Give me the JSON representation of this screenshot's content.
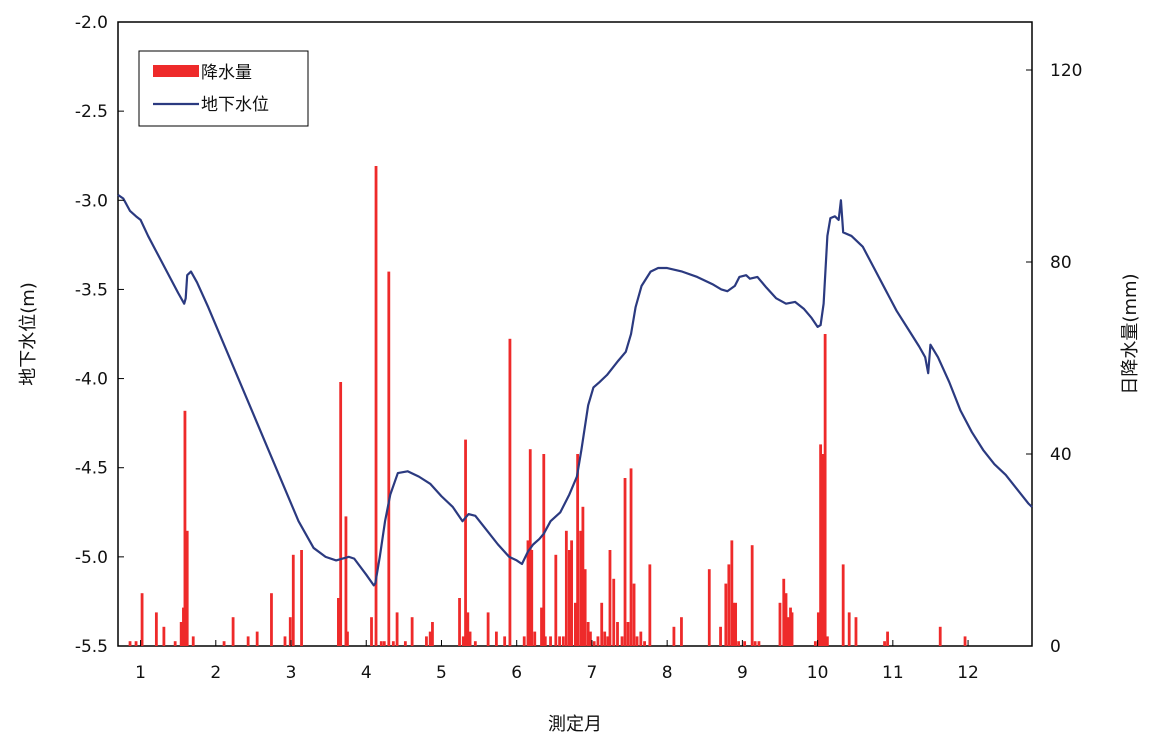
{
  "chart_data": {
    "type": "bar+line",
    "title": "",
    "xlabel": "測定月",
    "ylabel_left": "地下水位(m)",
    "ylabel_right": "日降水量(mm)",
    "x_tick_labels": [
      "1",
      "2",
      "3",
      "4",
      "5",
      "6",
      "7",
      "8",
      "9",
      "10",
      "11",
      "12"
    ],
    "xlim": [
      0.7,
      12.85
    ],
    "ylim_left": [
      -5.5,
      -2.0
    ],
    "ylim_right": [
      0,
      130
    ],
    "y_left_ticks": [
      -2.0,
      -2.5,
      -3.0,
      -3.5,
      -4.0,
      -4.5,
      -5.0,
      -5.5
    ],
    "y_left_tick_labels": [
      "-2.0",
      "-2.5",
      "-3.0",
      "-3.5",
      "-4.0",
      "-4.5",
      "-5.0",
      "-5.5"
    ],
    "y_right_ticks": [
      0,
      40,
      80,
      120
    ],
    "y_right_tick_labels": [
      "0",
      "40",
      "80",
      "120"
    ],
    "grid": false,
    "legend_position": "top-left",
    "colors": {
      "rain": "#ee2a2a",
      "water": "#2b3a80"
    },
    "series": [
      {
        "name": "降水量",
        "kind": "bar",
        "axis": "right",
        "points": [
          [
            0.86,
            1
          ],
          [
            0.94,
            1
          ],
          [
            1.02,
            11
          ],
          [
            1.21,
            7
          ],
          [
            1.31,
            4
          ],
          [
            1.46,
            1
          ],
          [
            1.54,
            5
          ],
          [
            1.57,
            8
          ],
          [
            1.59,
            49
          ],
          [
            1.62,
            24
          ],
          [
            1.7,
            2
          ],
          [
            2.11,
            1
          ],
          [
            2.23,
            6
          ],
          [
            2.43,
            2
          ],
          [
            2.55,
            3
          ],
          [
            2.74,
            11
          ],
          [
            2.92,
            2
          ],
          [
            2.99,
            6
          ],
          [
            3.03,
            19
          ],
          [
            3.14,
            20
          ],
          [
            3.63,
            10
          ],
          [
            3.66,
            55
          ],
          [
            3.73,
            27
          ],
          [
            3.75,
            3
          ],
          [
            4.07,
            6
          ],
          [
            4.13,
            100
          ],
          [
            4.2,
            1
          ],
          [
            4.24,
            1
          ],
          [
            4.3,
            78
          ],
          [
            4.36,
            1
          ],
          [
            4.41,
            7
          ],
          [
            4.52,
            1
          ],
          [
            4.61,
            6
          ],
          [
            4.8,
            2
          ],
          [
            4.85,
            3
          ],
          [
            4.88,
            5
          ],
          [
            5.24,
            10
          ],
          [
            5.29,
            2
          ],
          [
            5.32,
            43
          ],
          [
            5.35,
            7
          ],
          [
            5.38,
            3
          ],
          [
            5.45,
            1
          ],
          [
            5.62,
            7
          ],
          [
            5.73,
            3
          ],
          [
            5.84,
            2
          ],
          [
            5.91,
            64
          ],
          [
            6.1,
            2
          ],
          [
            6.15,
            22
          ],
          [
            6.18,
            41
          ],
          [
            6.2,
            20
          ],
          [
            6.24,
            3
          ],
          [
            6.33,
            8
          ],
          [
            6.36,
            40
          ],
          [
            6.38,
            2
          ],
          [
            6.45,
            2
          ],
          [
            6.52,
            19
          ],
          [
            6.57,
            2
          ],
          [
            6.62,
            2
          ],
          [
            6.66,
            24
          ],
          [
            6.7,
            20
          ],
          [
            6.73,
            22
          ],
          [
            6.78,
            9
          ],
          [
            6.81,
            40
          ],
          [
            6.85,
            24
          ],
          [
            6.88,
            29
          ],
          [
            6.91,
            16
          ],
          [
            6.95,
            5
          ],
          [
            6.98,
            3
          ],
          [
            7.03,
            1
          ],
          [
            7.08,
            2
          ],
          [
            7.13,
            9
          ],
          [
            7.17,
            3
          ],
          [
            7.21,
            2
          ],
          [
            7.24,
            20
          ],
          [
            7.29,
            14
          ],
          [
            7.34,
            5
          ],
          [
            7.4,
            2
          ],
          [
            7.44,
            35
          ],
          [
            7.48,
            5
          ],
          [
            7.52,
            37
          ],
          [
            7.56,
            13
          ],
          [
            7.6,
            2
          ],
          [
            7.65,
            3
          ],
          [
            7.7,
            1
          ],
          [
            7.77,
            17
          ],
          [
            8.09,
            4
          ],
          [
            8.19,
            6
          ],
          [
            8.56,
            16
          ],
          [
            8.71,
            4
          ],
          [
            8.78,
            13
          ],
          [
            8.82,
            17
          ],
          [
            8.86,
            22
          ],
          [
            8.88,
            9
          ],
          [
            8.91,
            9
          ],
          [
            8.95,
            1
          ],
          [
            9.03,
            1
          ],
          [
            9.13,
            21
          ],
          [
            9.17,
            1
          ],
          [
            9.22,
            1
          ],
          [
            9.5,
            9
          ],
          [
            9.55,
            14
          ],
          [
            9.58,
            11
          ],
          [
            9.61,
            6
          ],
          [
            9.64,
            8
          ],
          [
            9.66,
            7
          ],
          [
            9.97,
            1
          ],
          [
            10.01,
            7
          ],
          [
            10.04,
            42
          ],
          [
            10.07,
            40
          ],
          [
            10.1,
            65
          ],
          [
            10.13,
            2
          ],
          [
            10.34,
            17
          ],
          [
            10.42,
            7
          ],
          [
            10.51,
            6
          ],
          [
            10.89,
            1
          ],
          [
            10.93,
            3
          ],
          [
            11.63,
            4
          ],
          [
            11.96,
            2
          ]
        ]
      },
      {
        "name": "地下水位",
        "kind": "line",
        "axis": "left",
        "points": [
          [
            0.7,
            -2.97
          ],
          [
            0.77,
            -2.99
          ],
          [
            0.86,
            -3.06
          ],
          [
            0.94,
            -3.09
          ],
          [
            1.0,
            -3.11
          ],
          [
            1.1,
            -3.2
          ],
          [
            1.2,
            -3.28
          ],
          [
            1.35,
            -3.4
          ],
          [
            1.5,
            -3.52
          ],
          [
            1.58,
            -3.58
          ],
          [
            1.6,
            -3.55
          ],
          [
            1.62,
            -3.42
          ],
          [
            1.67,
            -3.4
          ],
          [
            1.75,
            -3.46
          ],
          [
            1.9,
            -3.6
          ],
          [
            2.1,
            -3.8
          ],
          [
            2.3,
            -4.0
          ],
          [
            2.5,
            -4.2
          ],
          [
            2.7,
            -4.4
          ],
          [
            2.9,
            -4.6
          ],
          [
            3.1,
            -4.8
          ],
          [
            3.3,
            -4.95
          ],
          [
            3.46,
            -5.0
          ],
          [
            3.6,
            -5.02
          ],
          [
            3.68,
            -5.01
          ],
          [
            3.77,
            -5.0
          ],
          [
            3.84,
            -5.01
          ],
          [
            4.0,
            -5.1
          ],
          [
            4.1,
            -5.16
          ],
          [
            4.12,
            -5.15
          ],
          [
            4.18,
            -5.0
          ],
          [
            4.25,
            -4.8
          ],
          [
            4.32,
            -4.65
          ],
          [
            4.42,
            -4.53
          ],
          [
            4.55,
            -4.52
          ],
          [
            4.7,
            -4.55
          ],
          [
            4.85,
            -4.59
          ],
          [
            5.0,
            -4.66
          ],
          [
            5.15,
            -4.72
          ],
          [
            5.28,
            -4.8
          ],
          [
            5.36,
            -4.76
          ],
          [
            5.45,
            -4.77
          ],
          [
            5.6,
            -4.85
          ],
          [
            5.75,
            -4.93
          ],
          [
            5.9,
            -5.0
          ],
          [
            6.0,
            -5.02
          ],
          [
            6.07,
            -5.04
          ],
          [
            6.15,
            -4.97
          ],
          [
            6.22,
            -4.93
          ],
          [
            6.3,
            -4.9
          ],
          [
            6.36,
            -4.87
          ],
          [
            6.45,
            -4.8
          ],
          [
            6.58,
            -4.75
          ],
          [
            6.7,
            -4.65
          ],
          [
            6.8,
            -4.55
          ],
          [
            6.86,
            -4.4
          ],
          [
            6.95,
            -4.15
          ],
          [
            7.02,
            -4.05
          ],
          [
            7.1,
            -4.02
          ],
          [
            7.2,
            -3.98
          ],
          [
            7.35,
            -3.9
          ],
          [
            7.45,
            -3.85
          ],
          [
            7.52,
            -3.75
          ],
          [
            7.58,
            -3.6
          ],
          [
            7.66,
            -3.48
          ],
          [
            7.78,
            -3.4
          ],
          [
            7.88,
            -3.38
          ],
          [
            8.0,
            -3.38
          ],
          [
            8.2,
            -3.4
          ],
          [
            8.4,
            -3.43
          ],
          [
            8.6,
            -3.47
          ],
          [
            8.72,
            -3.5
          ],
          [
            8.8,
            -3.51
          ],
          [
            8.9,
            -3.48
          ],
          [
            8.96,
            -3.43
          ],
          [
            9.05,
            -3.42
          ],
          [
            9.1,
            -3.44
          ],
          [
            9.2,
            -3.43
          ],
          [
            9.32,
            -3.49
          ],
          [
            9.45,
            -3.55
          ],
          [
            9.58,
            -3.58
          ],
          [
            9.7,
            -3.57
          ],
          [
            9.82,
            -3.61
          ],
          [
            9.92,
            -3.66
          ],
          [
            10.0,
            -3.71
          ],
          [
            10.04,
            -3.7
          ],
          [
            10.08,
            -3.58
          ],
          [
            10.13,
            -3.2
          ],
          [
            10.17,
            -3.1
          ],
          [
            10.23,
            -3.09
          ],
          [
            10.28,
            -3.11
          ],
          [
            10.31,
            -3.0
          ],
          [
            10.34,
            -3.18
          ],
          [
            10.45,
            -3.2
          ],
          [
            10.6,
            -3.26
          ],
          [
            10.75,
            -3.38
          ],
          [
            10.9,
            -3.5
          ],
          [
            11.05,
            -3.62
          ],
          [
            11.2,
            -3.72
          ],
          [
            11.35,
            -3.82
          ],
          [
            11.43,
            -3.88
          ],
          [
            11.47,
            -3.97
          ],
          [
            11.5,
            -3.81
          ],
          [
            11.6,
            -3.88
          ],
          [
            11.75,
            -4.02
          ],
          [
            11.9,
            -4.18
          ],
          [
            12.05,
            -4.3
          ],
          [
            12.2,
            -4.4
          ],
          [
            12.35,
            -4.48
          ],
          [
            12.5,
            -4.54
          ],
          [
            12.65,
            -4.62
          ],
          [
            12.8,
            -4.7
          ],
          [
            12.85,
            -4.72
          ]
        ]
      }
    ]
  }
}
